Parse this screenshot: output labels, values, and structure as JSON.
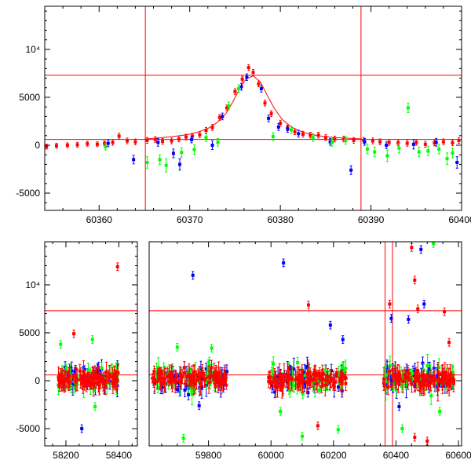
{
  "colors": {
    "red": "#ff0000",
    "blue": "#0000ff",
    "green": "#00ff00",
    "axis": "#000000"
  },
  "chart_data": [
    {
      "type": "scatter",
      "panel": "top",
      "xlim": [
        60354,
        60400
      ],
      "ylim": [
        -6800,
        14500
      ],
      "x_ticks": [
        "60360",
        "60370",
        "60380",
        "60390",
        "60400"
      ],
      "x_tick_values": [
        60360,
        60370,
        60380,
        60390,
        60400
      ],
      "y_ticks": [
        {
          "value": 10000,
          "label": "10⁴"
        },
        {
          "value": 5000,
          "label": "5000"
        },
        {
          "value": 0,
          "label": "0"
        },
        {
          "value": -5000,
          "label": "-5000"
        }
      ],
      "hlines": [
        7300,
        600
      ],
      "vlines": [
        60365.1,
        60388.9
      ],
      "model_curve": {
        "color": "#ff0000",
        "x": [
          60365,
          60367,
          60369,
          60370,
          60371,
          60372,
          60373,
          60374,
          60374.8,
          60375.5,
          60376.2,
          60377,
          60377.8,
          60378.5,
          60379.3,
          60380.2,
          60381.2,
          60382.5,
          60384,
          60386,
          60389
        ],
        "y": [
          650,
          800,
          1000,
          1150,
          1400,
          1750,
          2350,
          3300,
          4600,
          5900,
          6900,
          7250,
          6600,
          5300,
          3900,
          2700,
          1900,
          1350,
          1000,
          800,
          650
        ]
      },
      "series": [
        {
          "color": "#ff0000",
          "points": [
            {
              "x": 60354.2,
              "y": -150,
              "e": 250
            },
            {
              "x": 60355.3,
              "y": -50,
              "e": 250
            },
            {
              "x": 60356.5,
              "y": 0,
              "e": 250
            },
            {
              "x": 60357.6,
              "y": 50,
              "e": 250
            },
            {
              "x": 60358.7,
              "y": 150,
              "e": 250
            },
            {
              "x": 60359.8,
              "y": 100,
              "e": 250
            },
            {
              "x": 60360.6,
              "y": 200,
              "e": 250
            },
            {
              "x": 60361.5,
              "y": 300,
              "e": 300
            },
            {
              "x": 60362.2,
              "y": 950,
              "e": 300
            },
            {
              "x": 60363.1,
              "y": 450,
              "e": 300
            },
            {
              "x": 60364.0,
              "y": 350,
              "e": 300
            },
            {
              "x": 60365.3,
              "y": 500,
              "e": 300
            },
            {
              "x": 60366.2,
              "y": 600,
              "e": 300
            },
            {
              "x": 60367.0,
              "y": 400,
              "e": 300
            },
            {
              "x": 60368.0,
              "y": 450,
              "e": 300
            },
            {
              "x": 60368.8,
              "y": 650,
              "e": 300
            },
            {
              "x": 60369.6,
              "y": 850,
              "e": 300
            },
            {
              "x": 60370.3,
              "y": 950,
              "e": 300
            },
            {
              "x": 60371.1,
              "y": 1100,
              "e": 300
            },
            {
              "x": 60371.8,
              "y": 1550,
              "e": 300
            },
            {
              "x": 60372.5,
              "y": 1850,
              "e": 300
            },
            {
              "x": 60373.3,
              "y": 2900,
              "e": 300
            },
            {
              "x": 60374.1,
              "y": 3900,
              "e": 300
            },
            {
              "x": 60375.0,
              "y": 5600,
              "e": 300
            },
            {
              "x": 60375.8,
              "y": 6900,
              "e": 300
            },
            {
              "x": 60376.5,
              "y": 8100,
              "e": 300
            },
            {
              "x": 60377.0,
              "y": 7600,
              "e": 300
            },
            {
              "x": 60377.6,
              "y": 6400,
              "e": 300
            },
            {
              "x": 60378.3,
              "y": 4400,
              "e": 300
            },
            {
              "x": 60379.0,
              "y": 3300,
              "e": 300
            },
            {
              "x": 60380.0,
              "y": 2300,
              "e": 300
            },
            {
              "x": 60380.8,
              "y": 1800,
              "e": 300
            },
            {
              "x": 60381.6,
              "y": 1400,
              "e": 300
            },
            {
              "x": 60382.5,
              "y": 1150,
              "e": 300
            },
            {
              "x": 60383.3,
              "y": 1050,
              "e": 300
            },
            {
              "x": 60384.2,
              "y": 1050,
              "e": 300
            },
            {
              "x": 60385.0,
              "y": 800,
              "e": 300
            },
            {
              "x": 60386.0,
              "y": 650,
              "e": 300
            },
            {
              "x": 60387.0,
              "y": 650,
              "e": 300
            },
            {
              "x": 60388.1,
              "y": 500,
              "e": 300
            },
            {
              "x": 60389.2,
              "y": 500,
              "e": 300
            },
            {
              "x": 60390.2,
              "y": 450,
              "e": 300
            },
            {
              "x": 60391.0,
              "y": 350,
              "e": 300
            },
            {
              "x": 60392.0,
              "y": 300,
              "e": 300
            },
            {
              "x": 60393.0,
              "y": 250,
              "e": 300
            },
            {
              "x": 60394.0,
              "y": 200,
              "e": 300
            },
            {
              "x": 60395.0,
              "y": 300,
              "e": 300
            },
            {
              "x": 60396.0,
              "y": 100,
              "e": 300
            },
            {
              "x": 60397.0,
              "y": 250,
              "e": 300
            },
            {
              "x": 60398.0,
              "y": 350,
              "e": 300
            },
            {
              "x": 60399.0,
              "y": 250,
              "e": 300
            },
            {
              "x": 60399.7,
              "y": 500,
              "e": 300
            }
          ]
        },
        {
          "color": "#0000ff",
          "points": [
            {
              "x": 60361.0,
              "y": 200,
              "e": 350
            },
            {
              "x": 60363.8,
              "y": -1500,
              "e": 450
            },
            {
              "x": 60366.5,
              "y": 300,
              "e": 400
            },
            {
              "x": 60368.2,
              "y": -850,
              "e": 450
            },
            {
              "x": 60368.9,
              "y": -2000,
              "e": 600
            },
            {
              "x": 60370.2,
              "y": 600,
              "e": 350
            },
            {
              "x": 60372.5,
              "y": 0,
              "e": 450
            },
            {
              "x": 60373.6,
              "y": 3000,
              "e": 350
            },
            {
              "x": 60375.7,
              "y": 6100,
              "e": 350
            },
            {
              "x": 60376.3,
              "y": 7100,
              "e": 350
            },
            {
              "x": 60377.9,
              "y": 5900,
              "e": 350
            },
            {
              "x": 60378.7,
              "y": 2800,
              "e": 350
            },
            {
              "x": 60379.8,
              "y": 1900,
              "e": 350
            },
            {
              "x": 60380.8,
              "y": 1700,
              "e": 350
            },
            {
              "x": 60382.0,
              "y": 1200,
              "e": 350
            },
            {
              "x": 60385.5,
              "y": 350,
              "e": 350
            },
            {
              "x": 60387.8,
              "y": -2600,
              "e": 450
            },
            {
              "x": 60389.3,
              "y": 350,
              "e": 350
            },
            {
              "x": 60391.7,
              "y": 0,
              "e": 350
            },
            {
              "x": 60394.7,
              "y": 100,
              "e": 500
            },
            {
              "x": 60397.2,
              "y": 300,
              "e": 400
            },
            {
              "x": 60399.5,
              "y": -1800,
              "e": 600
            }
          ]
        },
        {
          "color": "#00ff00",
          "points": [
            {
              "x": 60360.7,
              "y": -150,
              "e": 350
            },
            {
              "x": 60365.3,
              "y": -1800,
              "e": 600
            },
            {
              "x": 60366.7,
              "y": -1500,
              "e": 500
            },
            {
              "x": 60367.4,
              "y": -2100,
              "e": 700
            },
            {
              "x": 60369.1,
              "y": -750,
              "e": 500
            },
            {
              "x": 60370.5,
              "y": -450,
              "e": 500
            },
            {
              "x": 60371.8,
              "y": 800,
              "e": 400
            },
            {
              "x": 60373.1,
              "y": 300,
              "e": 400
            },
            {
              "x": 60374.3,
              "y": 4100,
              "e": 400
            },
            {
              "x": 60375.4,
              "y": 5900,
              "e": 400
            },
            {
              "x": 60379.2,
              "y": 900,
              "e": 400
            },
            {
              "x": 60381.2,
              "y": 1600,
              "e": 400
            },
            {
              "x": 60383.6,
              "y": 800,
              "e": 400
            },
            {
              "x": 60385.7,
              "y": 300,
              "e": 400
            },
            {
              "x": 60387.2,
              "y": 500,
              "e": 400
            },
            {
              "x": 60389.6,
              "y": -400,
              "e": 500
            },
            {
              "x": 60390.4,
              "y": -700,
              "e": 500
            },
            {
              "x": 60391.8,
              "y": -1100,
              "e": 600
            },
            {
              "x": 60393.1,
              "y": -300,
              "e": 500
            },
            {
              "x": 60394.1,
              "y": 3900,
              "e": 500
            },
            {
              "x": 60395.3,
              "y": -700,
              "e": 500
            },
            {
              "x": 60396.3,
              "y": -600,
              "e": 500
            },
            {
              "x": 60397.5,
              "y": -400,
              "e": 500
            },
            {
              "x": 60398.4,
              "y": -1400,
              "e": 600
            },
            {
              "x": 60399.0,
              "y": -800,
              "e": 500
            }
          ]
        }
      ]
    },
    {
      "type": "scatter",
      "panel": "bottom",
      "ylim": [
        -6800,
        14500
      ],
      "y_ticks": [
        {
          "value": 10000,
          "label": "10⁴"
        },
        {
          "value": 5000,
          "label": "5000"
        },
        {
          "value": 0,
          "label": "0"
        },
        {
          "value": -5000,
          "label": "-5000"
        }
      ],
      "hlines": [
        7300,
        600
      ],
      "segments": [
        {
          "xlim": [
            58120,
            58470
          ],
          "ticks": [
            58200,
            58400
          ],
          "tick_labels": [
            "58200",
            "58400"
          ]
        },
        {
          "xlim": [
            59610,
            60610
          ],
          "ticks": [
            59800,
            60000,
            60200,
            60400,
            60600
          ],
          "tick_labels": [
            "59800",
            "60000",
            "60200",
            "60400",
            "60600"
          ]
        }
      ],
      "vlines": [
        60365.1,
        60388.9
      ],
      "clusters": [
        {
          "xlim": [
            58170,
            58400
          ],
          "center_sd": 600,
          "n": [
            90,
            45,
            40
          ]
        },
        {
          "xlim": [
            59620,
            59860
          ],
          "center_sd": 700,
          "n": [
            95,
            45,
            45
          ]
        },
        {
          "xlim": [
            59990,
            60240
          ],
          "center_sd": 650,
          "n": [
            100,
            40,
            45
          ]
        },
        {
          "xlim": [
            60360,
            60590
          ],
          "center_sd": 700,
          "n": [
            95,
            50,
            45
          ]
        }
      ],
      "outliers": [
        {
          "x": 58395,
          "y": 11900,
          "c": "red"
        },
        {
          "x": 58230,
          "y": 4900,
          "c": "red"
        },
        {
          "x": 58180,
          "y": 3800,
          "c": "green"
        },
        {
          "x": 58260,
          "y": -5000,
          "c": "blue"
        },
        {
          "x": 58300,
          "y": 4300,
          "c": "green"
        },
        {
          "x": 58310,
          "y": -2700,
          "c": "green"
        },
        {
          "x": 59750,
          "y": 11000,
          "c": "blue"
        },
        {
          "x": 59700,
          "y": 3500,
          "c": "green"
        },
        {
          "x": 59720,
          "y": -6000,
          "c": "green"
        },
        {
          "x": 59810,
          "y": 3400,
          "c": "green"
        },
        {
          "x": 59770,
          "y": -2600,
          "c": "blue"
        },
        {
          "x": 60040,
          "y": 12300,
          "c": "blue"
        },
        {
          "x": 60120,
          "y": 7900,
          "c": "red"
        },
        {
          "x": 60190,
          "y": 5800,
          "c": "blue"
        },
        {
          "x": 60230,
          "y": 4300,
          "c": "blue"
        },
        {
          "x": 60150,
          "y": -4700,
          "c": "red"
        },
        {
          "x": 60100,
          "y": -5800,
          "c": "green"
        },
        {
          "x": 60215,
          "y": -5100,
          "c": "green"
        },
        {
          "x": 60030,
          "y": -3200,
          "c": "green"
        },
        {
          "x": 60380,
          "y": 8000,
          "c": "red"
        },
        {
          "x": 60385,
          "y": 6500,
          "c": "blue"
        },
        {
          "x": 60450,
          "y": 13900,
          "c": "red"
        },
        {
          "x": 60460,
          "y": 10500,
          "c": "red"
        },
        {
          "x": 60480,
          "y": 13700,
          "c": "blue"
        },
        {
          "x": 60520,
          "y": 14300,
          "c": "green"
        },
        {
          "x": 60470,
          "y": 7500,
          "c": "red"
        },
        {
          "x": 60440,
          "y": 6400,
          "c": "blue"
        },
        {
          "x": 60490,
          "y": 8000,
          "c": "blue"
        },
        {
          "x": 60555,
          "y": 7200,
          "c": "red"
        },
        {
          "x": 60570,
          "y": 4000,
          "c": "red"
        },
        {
          "x": 60420,
          "y": -5000,
          "c": "green"
        },
        {
          "x": 60500,
          "y": -6300,
          "c": "red"
        },
        {
          "x": 60460,
          "y": -5900,
          "c": "red"
        },
        {
          "x": 60540,
          "y": -3200,
          "c": "green"
        },
        {
          "x": 60410,
          "y": -2700,
          "c": "blue"
        }
      ]
    }
  ]
}
